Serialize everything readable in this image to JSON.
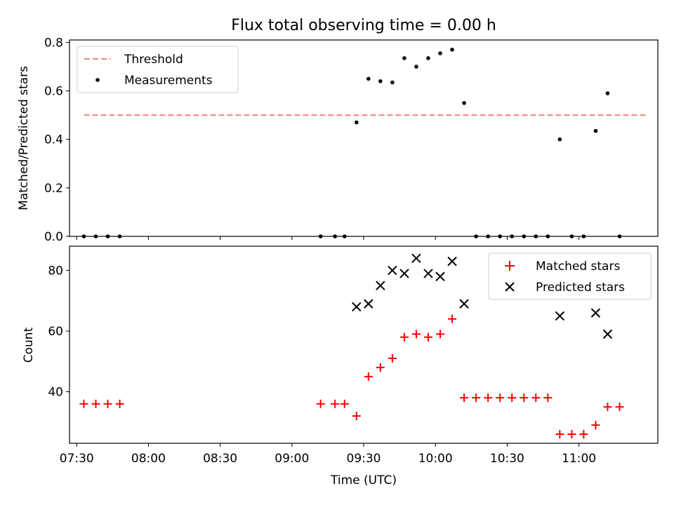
{
  "chart_data": [
    {
      "type": "scatter",
      "title": "Flux total observing time = 0.00 h",
      "xlabel": "",
      "ylabel": "Matched/Predicted stars",
      "xlim": [
        "07:27",
        "11:33"
      ],
      "ylim": [
        0,
        0.81
      ],
      "yticks": [
        0.0,
        0.2,
        0.4,
        0.6,
        0.8
      ],
      "ytick_labels": [
        "0.0",
        "0.2",
        "0.4",
        "0.6",
        "0.8"
      ],
      "grid": false,
      "legend": "top-left",
      "threshold": {
        "name": "Threshold",
        "value": 0.5,
        "x_start": "07:33",
        "x_end": "11:28",
        "color": "#ff7f7f"
      },
      "series": [
        {
          "name": "Measurements",
          "color": "#000000",
          "points": [
            [
              "07:33",
              0.0
            ],
            [
              "07:38",
              0.0
            ],
            [
              "07:43",
              0.0
            ],
            [
              "07:48",
              0.0
            ],
            [
              "09:12",
              0.0
            ],
            [
              "09:18",
              0.0
            ],
            [
              "09:22",
              0.0
            ],
            [
              "09:27",
              0.47
            ],
            [
              "09:32",
              0.65
            ],
            [
              "09:37",
              0.64
            ],
            [
              "09:42",
              0.635
            ],
            [
              "09:47",
              0.735
            ],
            [
              "09:52",
              0.7
            ],
            [
              "09:57",
              0.735
            ],
            [
              "10:02",
              0.755
            ],
            [
              "10:07",
              0.77
            ],
            [
              "10:12",
              0.55
            ],
            [
              "10:17",
              0.0
            ],
            [
              "10:22",
              0.0
            ],
            [
              "10:27",
              0.0
            ],
            [
              "10:32",
              0.0
            ],
            [
              "10:37",
              0.0
            ],
            [
              "10:42",
              0.0
            ],
            [
              "10:47",
              0.0
            ],
            [
              "10:52",
              0.4
            ],
            [
              "10:57",
              0.0
            ],
            [
              "11:02",
              0.0
            ],
            [
              "11:07",
              0.435
            ],
            [
              "11:12",
              0.59
            ],
            [
              "11:17",
              0.0
            ]
          ]
        }
      ]
    },
    {
      "type": "scatter",
      "title": "",
      "xlabel": "Time (UTC)",
      "ylabel": "Count",
      "xlim": [
        "07:27",
        "11:33"
      ],
      "ylim": [
        23,
        88
      ],
      "yticks": [
        40,
        60,
        80
      ],
      "ytick_labels": [
        "40",
        "60",
        "80"
      ],
      "xticks": [
        "07:30",
        "08:00",
        "08:30",
        "09:00",
        "09:30",
        "10:00",
        "10:30",
        "11:00"
      ],
      "grid": false,
      "legend": "top-right",
      "series": [
        {
          "name": "Matched stars",
          "marker": "plus",
          "color": "#ff0000",
          "points": [
            [
              "07:33",
              36
            ],
            [
              "07:38",
              36
            ],
            [
              "07:43",
              36
            ],
            [
              "07:48",
              36
            ],
            [
              "09:12",
              36
            ],
            [
              "09:18",
              36
            ],
            [
              "09:22",
              36
            ],
            [
              "09:27",
              32
            ],
            [
              "09:32",
              45
            ],
            [
              "09:37",
              48
            ],
            [
              "09:42",
              51
            ],
            [
              "09:47",
              58
            ],
            [
              "09:52",
              59
            ],
            [
              "09:57",
              58
            ],
            [
              "10:02",
              59
            ],
            [
              "10:07",
              64
            ],
            [
              "10:12",
              38
            ],
            [
              "10:17",
              38
            ],
            [
              "10:22",
              38
            ],
            [
              "10:27",
              38
            ],
            [
              "10:32",
              38
            ],
            [
              "10:37",
              38
            ],
            [
              "10:42",
              38
            ],
            [
              "10:47",
              38
            ],
            [
              "10:52",
              26
            ],
            [
              "10:57",
              26
            ],
            [
              "11:02",
              26
            ],
            [
              "11:07",
              29
            ],
            [
              "11:12",
              35
            ],
            [
              "11:17",
              35
            ]
          ]
        },
        {
          "name": "Predicted stars",
          "marker": "x",
          "color": "#000000",
          "points": [
            [
              "09:27",
              68
            ],
            [
              "09:32",
              69
            ],
            [
              "09:37",
              75
            ],
            [
              "09:42",
              80
            ],
            [
              "09:47",
              79
            ],
            [
              "09:52",
              84
            ],
            [
              "09:57",
              79
            ],
            [
              "10:02",
              78
            ],
            [
              "10:07",
              83
            ],
            [
              "10:12",
              69
            ],
            [
              "10:52",
              65
            ],
            [
              "11:07",
              66
            ],
            [
              "11:12",
              59
            ]
          ]
        }
      ]
    }
  ]
}
